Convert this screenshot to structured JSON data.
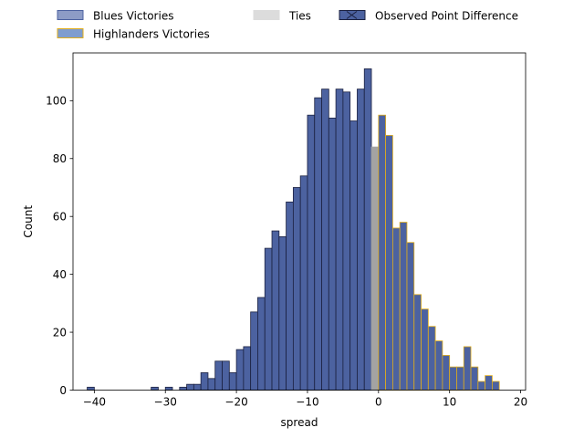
{
  "chart_data": {
    "type": "bar",
    "title": "",
    "xlabel": "spread",
    "ylabel": "Count",
    "xlim": [
      -43.0,
      20.7
    ],
    "ylim": [
      0,
      116.5
    ],
    "xticks": [
      -40,
      -30,
      -20,
      -10,
      0,
      10,
      20
    ],
    "yticks": [
      0,
      20,
      40,
      60,
      80,
      100
    ],
    "bin_width": 1,
    "legend": {
      "placement": "top-center, above plot",
      "entries": [
        {
          "label": "Blues Victories",
          "style": "blues_legend"
        },
        {
          "label": "Highlanders Victories",
          "style": "highlanders_legend"
        },
        {
          "label": "Ties",
          "style": "ties_legend"
        },
        {
          "label": "Observed Point Difference",
          "style": "observed_legend"
        }
      ]
    },
    "colors": {
      "blues_fill": "#4c62a0",
      "blues_edge": "#1b2140",
      "blues_legend_fill": "#8d9cc6",
      "blues_legend_edge": "#4c62a0",
      "highlanders_edge": "#e0ad1a",
      "highlanders_legend_fill": "#7f9dcf",
      "ties_fill": "#a3a3a3",
      "ties_legend_fill": "#dcdcdc",
      "observed_fill": "#4c62a0",
      "observed_edge": "#1b2140"
    },
    "series": [
      {
        "name": "Blues Victories",
        "style": "blues",
        "bins": [
          {
            "x": -41,
            "value": 1
          },
          {
            "x": -32,
            "value": 1
          },
          {
            "x": -30,
            "value": 1
          },
          {
            "x": -28,
            "value": 1
          },
          {
            "x": -27,
            "value": 2
          },
          {
            "x": -26,
            "value": 2
          },
          {
            "x": -25,
            "value": 6
          },
          {
            "x": -24,
            "value": 4
          },
          {
            "x": -23,
            "value": 10
          },
          {
            "x": -22,
            "value": 10
          },
          {
            "x": -21,
            "value": 6
          },
          {
            "x": -20,
            "value": 14
          },
          {
            "x": -19,
            "value": 15
          },
          {
            "x": -18,
            "value": 27
          },
          {
            "x": -17,
            "value": 32
          },
          {
            "x": -16,
            "value": 49
          },
          {
            "x": -15,
            "value": 55
          },
          {
            "x": -14,
            "value": 53
          },
          {
            "x": -13,
            "value": 65
          },
          {
            "x": -12,
            "value": 70
          },
          {
            "x": -11,
            "value": 74
          },
          {
            "x": -10,
            "value": 95
          },
          {
            "x": -9,
            "value": 101
          },
          {
            "x": -8,
            "value": 104
          },
          {
            "x": -7,
            "value": 94
          },
          {
            "x": -6,
            "value": 104
          },
          {
            "x": -5,
            "value": 103
          },
          {
            "x": -4,
            "value": 93
          },
          {
            "x": -3,
            "value": 104
          },
          {
            "x": -2,
            "value": 111
          }
        ]
      },
      {
        "name": "Ties",
        "style": "ties",
        "bins": [
          {
            "x": -1,
            "value": 84
          }
        ]
      },
      {
        "name": "Highlanders Victories",
        "style": "highlanders",
        "bins": [
          {
            "x": 0,
            "value": 95
          },
          {
            "x": 1,
            "value": 88
          },
          {
            "x": 2,
            "value": 56
          },
          {
            "x": 3,
            "value": 58
          },
          {
            "x": 4,
            "value": 51
          },
          {
            "x": 5,
            "value": 33
          },
          {
            "x": 6,
            "value": 28
          },
          {
            "x": 7,
            "value": 22
          },
          {
            "x": 8,
            "value": 17
          },
          {
            "x": 9,
            "value": 12
          },
          {
            "x": 10,
            "value": 8
          },
          {
            "x": 11,
            "value": 8
          },
          {
            "x": 12,
            "value": 15
          },
          {
            "x": 13,
            "value": 8
          },
          {
            "x": 14,
            "value": 3
          },
          {
            "x": 15,
            "value": 5
          },
          {
            "x": 16,
            "value": 3
          }
        ]
      }
    ]
  }
}
